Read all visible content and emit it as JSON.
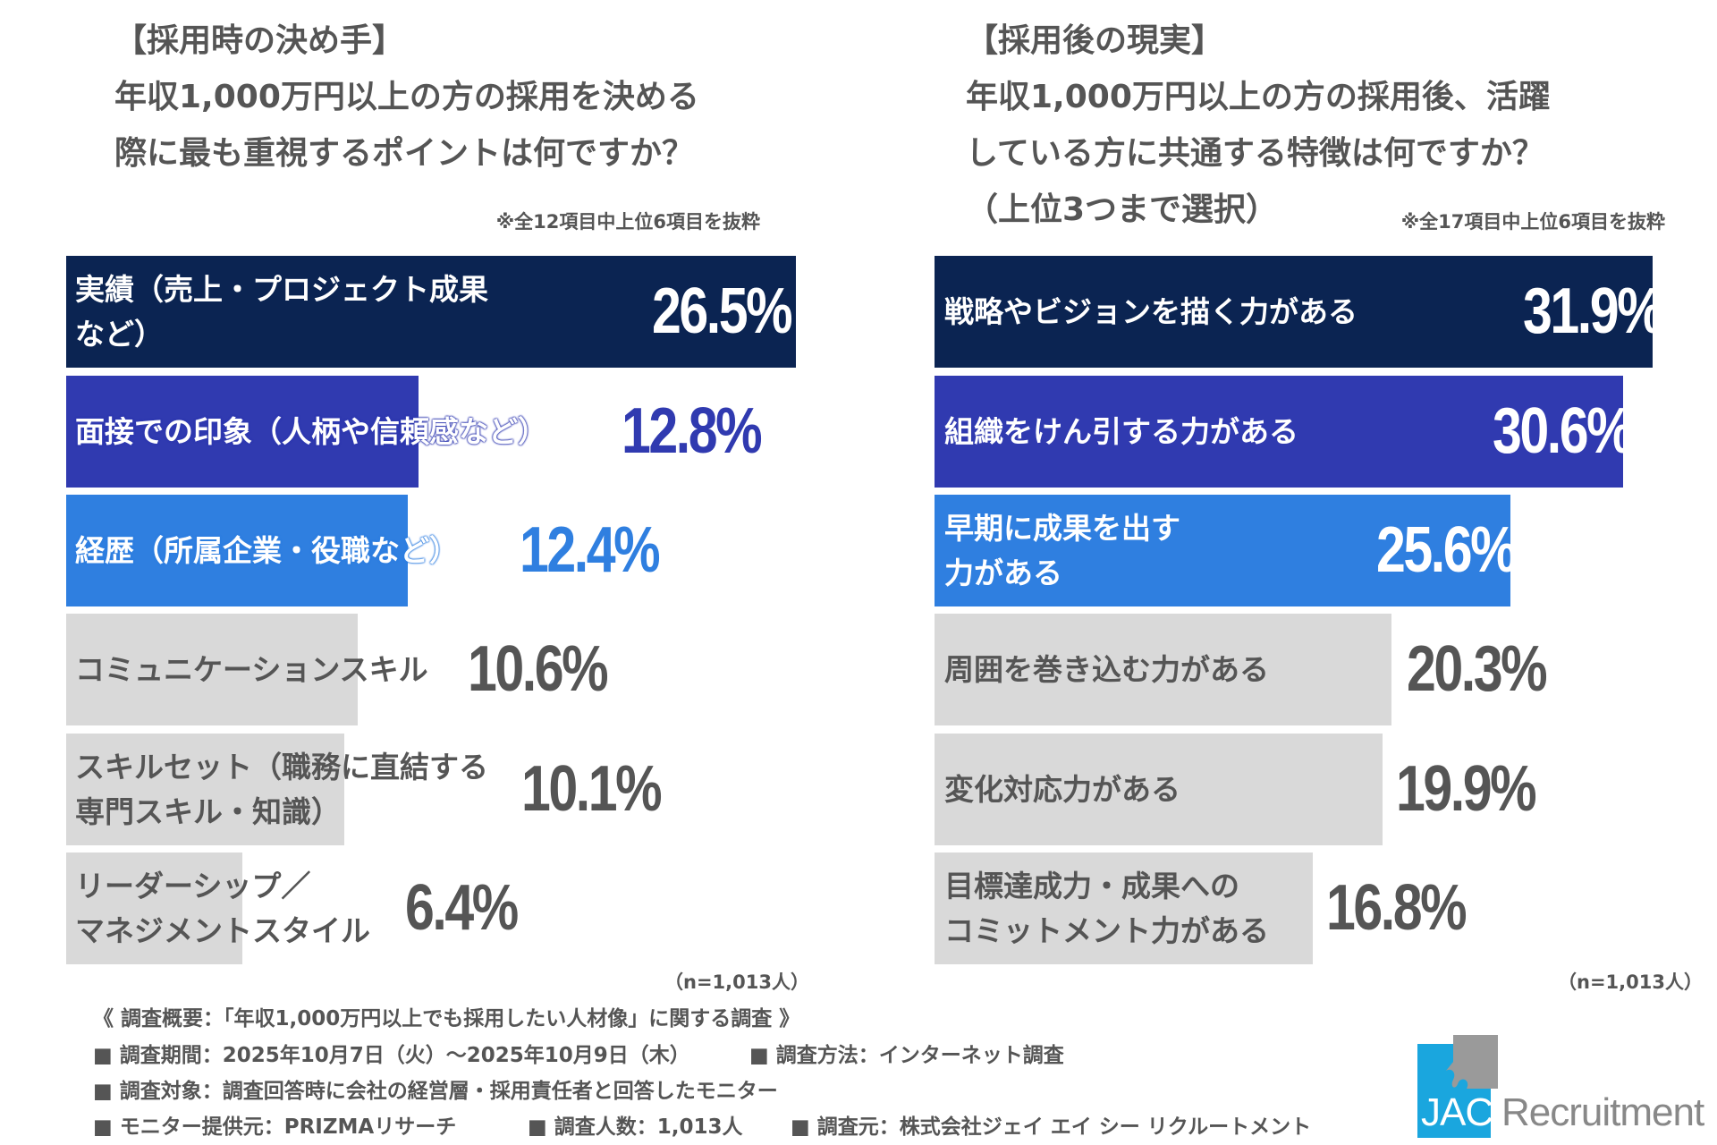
{
  "colors": {
    "navy": "#0b2452",
    "indigo": "#303ab0",
    "blue": "#2f7fe0",
    "gray": "#d9d9d9",
    "text": "#555555"
  },
  "chart_data": [
    {
      "type": "bar",
      "orientation": "horizontal",
      "title": [
        "【採用時の決め手】",
        "年収1,000万円以上の方の採用を決める",
        "際に最も重視するポイントは何ですか？"
      ],
      "note": "※全12項目中上位6項目を抜粋",
      "sample": "（n=1,013人）",
      "unit": "%",
      "categories": [
        "実績（売上・プロジェクト成果など）",
        "面接での印象（人柄や信頼感など）",
        "経歴（所属企業・役職など）",
        "コミュニケーションスキル",
        "スキルセット（職務に直結する専門スキル・知識）",
        "リーダーシップ／マネジメントスタイル"
      ],
      "label_lines": [
        [
          "実績（売上・プロジェクト成果",
          "など）"
        ],
        [
          "面接での印象（人柄や信頼感など）"
        ],
        [
          "経歴（所属企業・役職など）"
        ],
        [
          "コミュニケーションスキル"
        ],
        [
          "スキルセット（職務に直結する",
          "専門スキル・知識）"
        ],
        [
          "リーダーシップ／",
          "マネジメントスタイル"
        ]
      ],
      "values": [
        26.5,
        12.8,
        12.4,
        10.6,
        10.1,
        6.4
      ],
      "value_labels": [
        "26.5%",
        "12.8%",
        "12.4%",
        "10.6%",
        "10.1%",
        "6.4%"
      ],
      "bar_colors": [
        "#0b2452",
        "#303ab0",
        "#2f7fe0",
        "#d9d9d9",
        "#d9d9d9",
        "#d9d9d9"
      ]
    },
    {
      "type": "bar",
      "orientation": "horizontal",
      "title": [
        "【採用後の現実】",
        "年収1,000万円以上の方の採用後、活躍",
        "している方に共通する特徴は何ですか？",
        "（上位3つまで選択）"
      ],
      "note": "※全17項目中上位6項目を抜粋",
      "sample": "（n=1,013人）",
      "unit": "%",
      "categories": [
        "戦略やビジョンを描く力がある",
        "組織をけん引する力がある",
        "早期に成果を出す力がある",
        "周囲を巻き込む力がある",
        "変化対応力がある",
        "目標達成力・成果へのコミットメント力がある"
      ],
      "label_lines": [
        [
          "戦略やビジョンを描く力がある"
        ],
        [
          "組織をけん引する力がある"
        ],
        [
          "早期に成果を出す",
          "力がある"
        ],
        [
          "周囲を巻き込む力がある"
        ],
        [
          "変化対応力がある"
        ],
        [
          "目標達成力・成果への",
          "コミットメント力がある"
        ]
      ],
      "values": [
        31.9,
        30.6,
        25.6,
        20.3,
        19.9,
        16.8
      ],
      "value_labels": [
        "31.9%",
        "30.6%",
        "25.6%",
        "20.3%",
        "19.9%",
        "16.8%"
      ],
      "bar_colors": [
        "#0b2452",
        "#303ab0",
        "#2f7fe0",
        "#d9d9d9",
        "#d9d9d9",
        "#d9d9d9"
      ]
    }
  ],
  "footer": {
    "heading": "《 調査概要：「年収1,000万円以上でも採用したい人材像」に関する調査 》",
    "period": "■ 調査期間：2025年10月7日（火）～2025年10月9日（木）",
    "method": "■ 調査方法：インターネット調査",
    "target": "■ 調査対象：調査回答時に会社の経営層・採用責任者と回答したモニター",
    "provider": "■ モニター提供元：PRIZMAリサーチ",
    "count": "■ 調査人数：1,013人",
    "source": "■ 調査元：株式会社ジェイ エイ シー リクルートメント"
  },
  "logo": {
    "text_jac": "JAC",
    "text_rest": "Recruitment"
  }
}
